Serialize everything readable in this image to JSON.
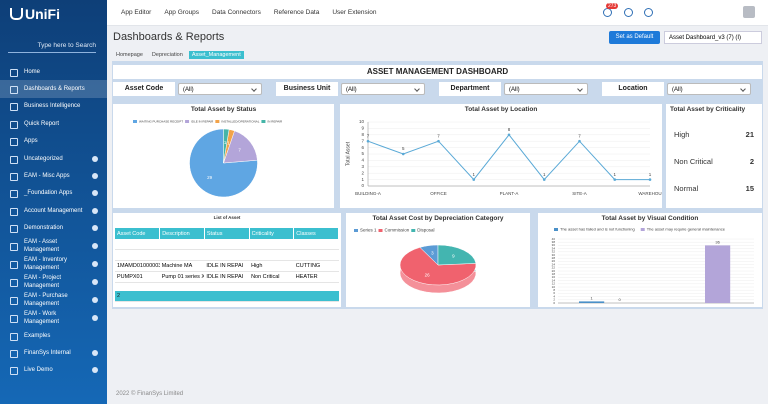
{
  "sidebar": {
    "logo": "UniFi",
    "search_placeholder": "Type here to Search",
    "menu": [
      "Home",
      "Dashboards & Reports",
      "Business Intelligence",
      "Quick Report",
      "Apps",
      "Uncategorized",
      "EAM - Misc Apps",
      "_Foundation Apps",
      "Account Management",
      "Demonstration",
      "EAM - Asset Management",
      "EAM - Inventory Management",
      "EAM - Project Management",
      "EAM - Purchase Management",
      "EAM - Work Management",
      "Examples",
      "FinanSys Internal",
      "Live Demo"
    ]
  },
  "topnav": {
    "links": [
      "App Editor",
      "App Groups",
      "Data Connectors",
      "Reference Data",
      "User Extension"
    ],
    "notifications": 273
  },
  "header": {
    "title": "Dashboards & Reports",
    "default_button": "Set as Default",
    "dashboard_select": "Asset Dashboard_v3 (7) (I)"
  },
  "tabs": [
    "Homepage",
    "Depreciation",
    "Asset_Management"
  ],
  "dashboard_title": "ASSET MANAGEMENT DASHBOARD",
  "filters": [
    {
      "label": "Asset Code",
      "value": "(All)"
    },
    {
      "label": "Business Unit",
      "value": "(All)"
    },
    {
      "label": "Department",
      "value": "(All)"
    },
    {
      "label": "Location",
      "value": "(All)"
    }
  ],
  "chart_data": [
    {
      "type": "pie",
      "title": "Total Asset by Status",
      "categories": [
        "WAITING PURCHASE RECEIPT",
        "IDLE IN REPAIR",
        "INSTALLED/OPERATIONAL",
        "IN REPAIR"
      ],
      "values": [
        29,
        7,
        1,
        1
      ],
      "colors": [
        "#5fa6e3",
        "#b3a5d9",
        "#f2a34a",
        "#45b5a8"
      ]
    },
    {
      "type": "line",
      "title": "Total Asset by Location",
      "categories": [
        "BUILDING-A",
        null,
        "OFFICE",
        null,
        "PLANT-A",
        null,
        "SITE-A",
        null,
        "WAREHOU"
      ],
      "values": [
        7,
        5,
        7,
        1,
        8,
        1,
        7,
        1,
        1
      ],
      "color": "#5aa9d6",
      "y_label": "Total Asset",
      "ylim": [
        0,
        10
      ],
      "yticks": [
        0,
        1,
        2,
        3,
        4,
        5,
        6,
        7,
        8,
        9,
        10
      ],
      "grid": true
    },
    {
      "type": "pie",
      "title": "Total Asset Cost by Depreciation Category",
      "categories": [
        "Series 1",
        "Commission",
        "Disposal"
      ],
      "values": [
        3,
        26,
        9
      ],
      "colors": [
        "#5b9bd5",
        "#f0626e",
        "#43b5b0"
      ],
      "three_d": true
    },
    {
      "type": "bar",
      "title": "Total Asset by Visual Condition",
      "categories": [
        null,
        null
      ],
      "series": [
        {
          "name": "The asset has failed and is not functioning",
          "color": "#4a90c8",
          "values": [
            1,
            null
          ]
        },
        {
          "name": "The asset may require general maintenance",
          "color": "#b3a5d9",
          "values": [
            0,
            36
          ]
        }
      ],
      "ylim": [
        0,
        40
      ],
      "yticks": [
        0,
        2,
        4,
        6,
        8,
        10,
        12,
        14,
        16,
        18,
        20,
        22,
        24,
        26,
        28,
        30,
        32,
        34,
        36,
        38,
        40
      ],
      "grid": true
    }
  ],
  "criticality": {
    "title": "Total Asset by Criticality",
    "items": [
      {
        "label": "High",
        "value": 21
      },
      {
        "label": "Non Critical",
        "value": 2
      },
      {
        "label": "Normal",
        "value": 15
      }
    ]
  },
  "asset_list": {
    "title": "List of Asset",
    "columns": [
      "Asset Code",
      "Description",
      "Status",
      "Criticality",
      "Classes"
    ],
    "rows": [
      [
        "1MAMD01000003A",
        "Machine MA",
        "IDLE IN REPAI",
        "High",
        "CUTTING"
      ],
      [
        "PUMPX01",
        "Pump 01 series X ba",
        "IDLE IN REPAI",
        "Non Critical",
        "HEATER"
      ]
    ],
    "total": 2
  },
  "footer": "2022 © FinanSys Limited"
}
